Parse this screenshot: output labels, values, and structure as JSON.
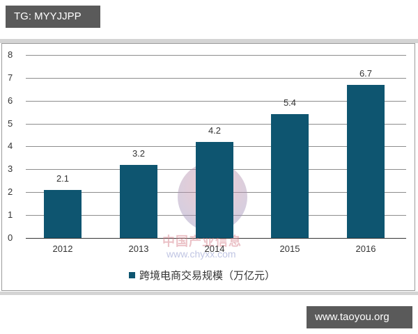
{
  "overlay": {
    "top_tag": "TG: MYYJJPP",
    "bottom_tag": "www.taoyou.org"
  },
  "watermark": {
    "text": "中国产业信息",
    "url": "www.chyxx.com"
  },
  "colors": {
    "bar": "#0e5570",
    "tag_bg": "#5a5a5a",
    "gridline": "#8c8c8c"
  },
  "chart_data": {
    "type": "bar",
    "title": "",
    "categories": [
      "2012",
      "2013",
      "2014",
      "2015",
      "2016"
    ],
    "values": [
      2.1,
      3.2,
      4.2,
      5.4,
      6.7
    ],
    "value_labels": [
      "2.1",
      "3.2",
      "4.2",
      "5.4",
      "6.7"
    ],
    "series": [
      {
        "name": "跨境电商交易规模（万亿元）",
        "values": [
          2.1,
          3.2,
          4.2,
          5.4,
          6.7
        ]
      }
    ],
    "xlabel": "",
    "ylabel": "",
    "ylim": [
      0,
      8
    ],
    "yticks": [
      "0",
      "1",
      "2",
      "3",
      "4",
      "5",
      "6",
      "7",
      "8"
    ],
    "grid": true,
    "legend_position": "bottom",
    "legend": [
      "跨境电商交易规模（万亿元）"
    ]
  }
}
